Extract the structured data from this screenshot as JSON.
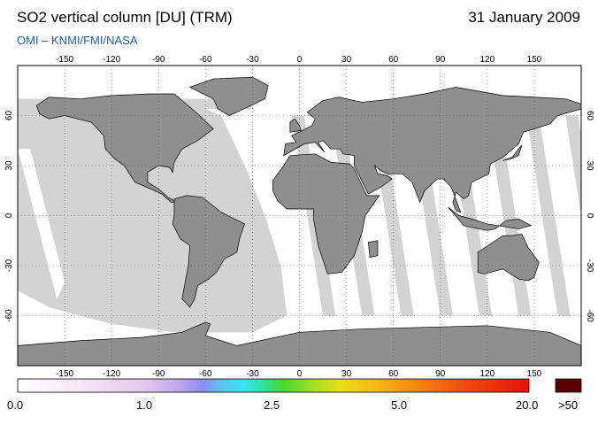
{
  "header": {
    "title": "SO2 vertical column [DU] (TRM)",
    "date": "31 January 2009",
    "credit": "OMI  –  KNMI/FMI/NASA"
  },
  "map": {
    "lon_ticks": [
      "-150",
      "-120",
      "-90",
      "-60",
      "-30",
      "0",
      "30",
      "60",
      "90",
      "120",
      "150"
    ],
    "lat_ticks": [
      "60",
      "30",
      "0",
      "-30",
      "-60"
    ],
    "colors": {
      "ocean": "#d3d3d3",
      "land": "#8f8f8f",
      "no_data_swath": "#ffffff"
    }
  },
  "colorbar": {
    "labels": [
      "0.0",
      "1.0",
      "2.5",
      "5.0",
      "20.0"
    ],
    "overflow_label": ">50",
    "overflow_color": "#5a0000"
  }
}
